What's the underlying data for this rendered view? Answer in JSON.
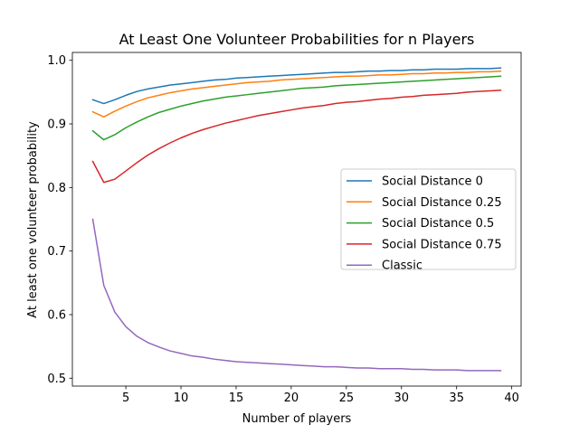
{
  "chart_data": {
    "type": "line",
    "title": "At Least One Volunteer Probabilities for n Players",
    "xlabel": "Number of players",
    "ylabel": "At least one volunteer probability",
    "xlim": [
      0.15,
      40.85
    ],
    "ylim": [
      0.4876,
      1.0124
    ],
    "xticks": [
      5,
      10,
      15,
      20,
      25,
      30,
      35,
      40
    ],
    "xtick_labels": [
      "5",
      "10",
      "15",
      "20",
      "25",
      "30",
      "35",
      "40"
    ],
    "yticks": [
      0.5,
      0.6,
      0.7,
      0.8,
      0.9,
      1.0
    ],
    "ytick_labels": [
      "0.5",
      "0.6",
      "0.7",
      "0.8",
      "0.9",
      "1.0"
    ],
    "grid": false,
    "legend_position": "center-right",
    "x": [
      2,
      3,
      4,
      5,
      6,
      7,
      8,
      9,
      10,
      11,
      12,
      13,
      14,
      15,
      16,
      17,
      18,
      19,
      20,
      21,
      22,
      23,
      24,
      25,
      26,
      27,
      28,
      29,
      30,
      31,
      32,
      33,
      34,
      35,
      36,
      37,
      38,
      39
    ],
    "series": [
      {
        "name": "Social Distance 0",
        "color": "#1f77b4",
        "values": [
          0.938,
          0.932,
          0.938,
          0.945,
          0.951,
          0.955,
          0.958,
          0.961,
          0.963,
          0.965,
          0.967,
          0.969,
          0.97,
          0.972,
          0.973,
          0.974,
          0.975,
          0.976,
          0.977,
          0.978,
          0.979,
          0.98,
          0.981,
          0.981,
          0.982,
          0.983,
          0.983,
          0.984,
          0.984,
          0.985,
          0.985,
          0.986,
          0.986,
          0.986,
          0.987,
          0.987,
          0.987,
          0.988
        ]
      },
      {
        "name": "Social Distance 0.25",
        "color": "#ff7f0e",
        "values": [
          0.919,
          0.911,
          0.92,
          0.928,
          0.935,
          0.941,
          0.945,
          0.949,
          0.952,
          0.955,
          0.957,
          0.959,
          0.961,
          0.963,
          0.965,
          0.966,
          0.967,
          0.969,
          0.97,
          0.971,
          0.972,
          0.973,
          0.974,
          0.975,
          0.975,
          0.976,
          0.977,
          0.977,
          0.978,
          0.979,
          0.979,
          0.98,
          0.98,
          0.981,
          0.981,
          0.982,
          0.982,
          0.983
        ]
      },
      {
        "name": "Social Distance 0.5",
        "color": "#2ca02c",
        "values": [
          0.889,
          0.875,
          0.883,
          0.894,
          0.903,
          0.911,
          0.918,
          0.923,
          0.928,
          0.932,
          0.936,
          0.939,
          0.942,
          0.944,
          0.946,
          0.948,
          0.95,
          0.952,
          0.954,
          0.956,
          0.957,
          0.958,
          0.96,
          0.961,
          0.962,
          0.963,
          0.964,
          0.965,
          0.966,
          0.967,
          0.968,
          0.969,
          0.97,
          0.971,
          0.972,
          0.973,
          0.974,
          0.975
        ]
      },
      {
        "name": "Social Distance 0.75",
        "color": "#d62728",
        "values": [
          0.841,
          0.808,
          0.813,
          0.826,
          0.839,
          0.851,
          0.861,
          0.87,
          0.878,
          0.885,
          0.891,
          0.896,
          0.901,
          0.905,
          0.909,
          0.913,
          0.916,
          0.919,
          0.922,
          0.925,
          0.927,
          0.929,
          0.932,
          0.934,
          0.935,
          0.937,
          0.939,
          0.94,
          0.942,
          0.943,
          0.945,
          0.946,
          0.947,
          0.948,
          0.95,
          0.951,
          0.952,
          0.953
        ]
      },
      {
        "name": "Classic",
        "color": "#9467bd",
        "values": [
          0.75,
          0.646,
          0.604,
          0.581,
          0.566,
          0.556,
          0.549,
          0.543,
          0.539,
          0.535,
          0.533,
          0.53,
          0.528,
          0.526,
          0.525,
          0.524,
          0.523,
          0.522,
          0.521,
          0.52,
          0.519,
          0.518,
          0.518,
          0.517,
          0.516,
          0.516,
          0.515,
          0.515,
          0.515,
          0.514,
          0.514,
          0.513,
          0.513,
          0.513,
          0.512,
          0.512,
          0.512,
          0.512
        ]
      }
    ]
  }
}
